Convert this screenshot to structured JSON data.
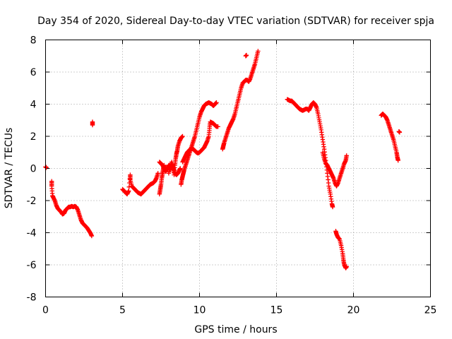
{
  "chart_data": {
    "type": "scatter",
    "title": "Day 354 of 2020, Sidereal Day-to-day VTEC variation (SDTVAR) for receiver spja",
    "xlabel": "GPS time / hours",
    "ylabel": "SDTVAR / TECUs",
    "xlim": [
      0,
      25
    ],
    "ylim": [
      -8,
      8
    ],
    "xticks": [
      0,
      5,
      10,
      15,
      20,
      25
    ],
    "yticks": [
      -8,
      -6,
      -4,
      -2,
      0,
      2,
      4,
      6,
      8
    ],
    "grid": true,
    "marker": "+",
    "color": "#ff0000",
    "series": [
      {
        "name": "spja",
        "segments": [
          [
            [
              0.0,
              0.1
            ],
            [
              0.05,
              0.05
            ]
          ],
          [
            [
              0.4,
              -0.8
            ],
            [
              0.4,
              -1.1
            ],
            [
              0.45,
              -1.7
            ],
            [
              0.5,
              -1.8
            ],
            [
              0.6,
              -2.0
            ],
            [
              0.7,
              -2.3
            ],
            [
              0.8,
              -2.5
            ],
            [
              0.9,
              -2.6
            ],
            [
              1.0,
              -2.7
            ],
            [
              1.1,
              -2.85
            ],
            [
              1.2,
              -2.8
            ],
            [
              1.3,
              -2.6
            ],
            [
              1.4,
              -2.5
            ],
            [
              1.5,
              -2.4
            ],
            [
              1.6,
              -2.4
            ],
            [
              1.7,
              -2.35
            ],
            [
              1.8,
              -2.4
            ],
            [
              1.9,
              -2.35
            ],
            [
              2.0,
              -2.4
            ],
            [
              2.1,
              -2.6
            ],
            [
              2.2,
              -2.9
            ],
            [
              2.3,
              -3.2
            ],
            [
              2.4,
              -3.4
            ],
            [
              2.5,
              -3.5
            ],
            [
              2.6,
              -3.6
            ],
            [
              2.7,
              -3.7
            ],
            [
              2.8,
              -3.85
            ],
            [
              2.9,
              -4.0
            ],
            [
              3.0,
              -4.2
            ]
          ],
          [
            [
              3.05,
              2.9
            ],
            [
              3.05,
              2.7
            ]
          ],
          [
            [
              5.0,
              -1.3
            ],
            [
              5.1,
              -1.4
            ],
            [
              5.2,
              -1.5
            ],
            [
              5.3,
              -1.6
            ],
            [
              5.4,
              -1.4
            ],
            [
              5.5,
              -0.4
            ],
            [
              5.5,
              -0.7
            ],
            [
              5.6,
              -1.1
            ],
            [
              5.7,
              -1.2
            ],
            [
              5.8,
              -1.3
            ],
            [
              5.9,
              -1.4
            ],
            [
              6.0,
              -1.5
            ],
            [
              6.1,
              -1.55
            ],
            [
              6.2,
              -1.6
            ],
            [
              6.3,
              -1.5
            ],
            [
              6.4,
              -1.4
            ],
            [
              6.5,
              -1.3
            ],
            [
              6.6,
              -1.2
            ],
            [
              6.7,
              -1.1
            ],
            [
              6.8,
              -1.0
            ],
            [
              6.9,
              -0.95
            ],
            [
              7.0,
              -0.9
            ],
            [
              7.1,
              -0.8
            ],
            [
              7.2,
              -0.6
            ],
            [
              7.3,
              -0.3
            ]
          ],
          [
            [
              7.4,
              -1.6
            ],
            [
              7.45,
              -1.3
            ],
            [
              7.5,
              -1.0
            ],
            [
              7.55,
              -0.6
            ],
            [
              7.6,
              -0.3
            ],
            [
              7.65,
              0.0
            ],
            [
              7.7,
              0.2
            ]
          ],
          [
            [
              7.4,
              0.4
            ],
            [
              7.5,
              0.3
            ],
            [
              7.6,
              0.2
            ],
            [
              7.7,
              0.0
            ],
            [
              7.8,
              -0.2
            ],
            [
              7.9,
              0.0
            ],
            [
              8.0,
              0.2
            ],
            [
              8.05,
              0.1
            ],
            [
              8.1,
              -0.1
            ],
            [
              8.15,
              0.2
            ],
            [
              8.2,
              0.3
            ],
            [
              8.3,
              0.1
            ],
            [
              8.35,
              -0.4
            ],
            [
              8.4,
              0.2
            ],
            [
              8.45,
              0.6
            ],
            [
              8.5,
              0.9
            ],
            [
              8.55,
              1.1
            ],
            [
              8.6,
              1.4
            ],
            [
              8.7,
              1.7
            ],
            [
              8.8,
              1.9
            ],
            [
              8.9,
              2.0
            ]
          ],
          [
            [
              8.0,
              -0.3
            ],
            [
              8.1,
              0.1
            ],
            [
              8.2,
              0.4
            ],
            [
              8.3,
              0.0
            ],
            [
              8.4,
              -0.3
            ],
            [
              8.5,
              -0.4
            ],
            [
              8.6,
              -0.3
            ],
            [
              8.7,
              -0.1
            ],
            [
              8.75,
              0.0
            ]
          ],
          [
            [
              8.8,
              -1.0
            ],
            [
              8.85,
              -0.7
            ],
            [
              8.9,
              -0.5
            ],
            [
              8.95,
              -0.3
            ],
            [
              9.0,
              -0.1
            ],
            [
              9.1,
              0.2
            ],
            [
              9.2,
              0.5
            ],
            [
              9.3,
              0.8
            ],
            [
              9.4,
              1.1
            ],
            [
              9.5,
              1.4
            ],
            [
              9.6,
              1.7
            ],
            [
              9.7,
              2.0
            ],
            [
              9.8,
              2.4
            ],
            [
              9.9,
              2.8
            ],
            [
              10.0,
              3.2
            ],
            [
              10.1,
              3.5
            ],
            [
              10.2,
              3.7
            ],
            [
              10.3,
              3.9
            ],
            [
              10.4,
              4.0
            ],
            [
              10.5,
              4.05
            ],
            [
              10.6,
              4.1
            ],
            [
              10.7,
              4.05
            ],
            [
              10.8,
              4.0
            ],
            [
              10.9,
              3.9
            ],
            [
              11.0,
              4.0
            ],
            [
              11.1,
              4.1
            ]
          ],
          [
            [
              8.9,
              0.4
            ],
            [
              9.0,
              0.6
            ],
            [
              9.1,
              0.8
            ],
            [
              9.2,
              1.0
            ],
            [
              9.3,
              1.1
            ],
            [
              9.4,
              1.2
            ],
            [
              9.5,
              1.25
            ],
            [
              9.6,
              1.2
            ],
            [
              9.7,
              1.1
            ],
            [
              9.8,
              1.0
            ],
            [
              9.9,
              0.95
            ],
            [
              10.0,
              1.0
            ],
            [
              10.1,
              1.1
            ],
            [
              10.2,
              1.2
            ],
            [
              10.3,
              1.3
            ],
            [
              10.4,
              1.5
            ],
            [
              10.5,
              1.7
            ],
            [
              10.6,
              2.0
            ],
            [
              10.65,
              2.5
            ],
            [
              10.7,
              2.9
            ],
            [
              10.8,
              2.85
            ],
            [
              10.9,
              2.8
            ],
            [
              11.0,
              2.7
            ],
            [
              11.1,
              2.6
            ],
            [
              11.2,
              2.6
            ]
          ],
          [
            [
              11.5,
              1.2
            ],
            [
              11.55,
              1.4
            ],
            [
              11.6,
              1.6
            ],
            [
              11.7,
              1.9
            ],
            [
              11.8,
              2.2
            ],
            [
              11.9,
              2.5
            ],
            [
              12.0,
              2.7
            ],
            [
              12.1,
              2.9
            ],
            [
              12.2,
              3.1
            ],
            [
              12.3,
              3.4
            ],
            [
              12.4,
              3.8
            ],
            [
              12.5,
              4.2
            ],
            [
              12.6,
              4.6
            ],
            [
              12.7,
              5.0
            ],
            [
              12.8,
              5.3
            ],
            [
              12.9,
              5.4
            ],
            [
              13.0,
              5.5
            ],
            [
              13.1,
              5.5
            ],
            [
              13.2,
              5.4
            ],
            [
              13.3,
              5.6
            ],
            [
              13.4,
              5.9
            ],
            [
              13.5,
              6.2
            ],
            [
              13.6,
              6.5
            ],
            [
              13.7,
              6.9
            ],
            [
              13.8,
              7.3
            ]
          ],
          [
            [
              13.0,
              7.0
            ],
            [
              13.05,
              7.05
            ]
          ],
          [
            [
              15.7,
              4.3
            ],
            [
              15.8,
              4.25
            ],
            [
              15.9,
              4.2
            ],
            [
              16.0,
              4.2
            ],
            [
              16.1,
              4.1
            ],
            [
              16.2,
              4.0
            ],
            [
              16.3,
              3.9
            ],
            [
              16.4,
              3.8
            ],
            [
              16.5,
              3.7
            ],
            [
              16.6,
              3.65
            ],
            [
              16.7,
              3.6
            ],
            [
              16.8,
              3.65
            ],
            [
              16.9,
              3.7
            ],
            [
              17.0,
              3.7
            ],
            [
              17.1,
              3.6
            ],
            [
              17.2,
              3.8
            ],
            [
              17.3,
              4.0
            ],
            [
              17.4,
              4.1
            ],
            [
              17.5,
              4.0
            ],
            [
              17.6,
              3.8
            ],
            [
              17.7,
              3.4
            ],
            [
              17.8,
              2.9
            ],
            [
              17.9,
              2.4
            ],
            [
              18.0,
              1.8
            ],
            [
              18.1,
              1.2
            ],
            [
              18.2,
              0.5
            ],
            [
              18.3,
              -0.3
            ],
            [
              18.4,
              -1.1
            ],
            [
              18.5,
              -1.6
            ],
            [
              18.6,
              -2.2
            ],
            [
              18.65,
              -2.4
            ]
          ],
          [
            [
              18.0,
              1.0
            ],
            [
              18.1,
              0.6
            ],
            [
              18.2,
              0.3
            ],
            [
              18.3,
              0.2
            ],
            [
              18.4,
              0.0
            ],
            [
              18.5,
              -0.2
            ],
            [
              18.6,
              -0.4
            ],
            [
              18.7,
              -0.6
            ],
            [
              18.8,
              -0.9
            ],
            [
              18.9,
              -1.1
            ],
            [
              19.0,
              -0.9
            ],
            [
              19.1,
              -0.6
            ],
            [
              19.2,
              -0.3
            ],
            [
              19.3,
              0.0
            ],
            [
              19.4,
              0.3
            ],
            [
              19.5,
              0.5
            ],
            [
              19.55,
              0.8
            ]
          ],
          [
            [
              18.85,
              -3.9
            ],
            [
              18.9,
              -4.1
            ],
            [
              19.0,
              -4.3
            ],
            [
              19.1,
              -4.4
            ],
            [
              19.2,
              -4.8
            ],
            [
              19.3,
              -5.3
            ],
            [
              19.35,
              -5.7
            ],
            [
              19.4,
              -6.0
            ],
            [
              19.5,
              -6.2
            ],
            [
              19.55,
              -6.1
            ]
          ],
          [
            [
              21.8,
              3.3
            ],
            [
              21.9,
              3.4
            ],
            [
              22.0,
              3.3
            ],
            [
              22.1,
              3.2
            ],
            [
              22.2,
              3.0
            ],
            [
              22.3,
              2.7
            ],
            [
              22.4,
              2.4
            ],
            [
              22.5,
              2.1
            ],
            [
              22.6,
              1.8
            ],
            [
              22.7,
              1.4
            ],
            [
              22.8,
              1.0
            ],
            [
              22.85,
              0.7
            ],
            [
              22.9,
              0.5
            ]
          ],
          [
            [
              22.95,
              2.3
            ],
            [
              23.0,
              2.25
            ]
          ]
        ]
      }
    ]
  }
}
